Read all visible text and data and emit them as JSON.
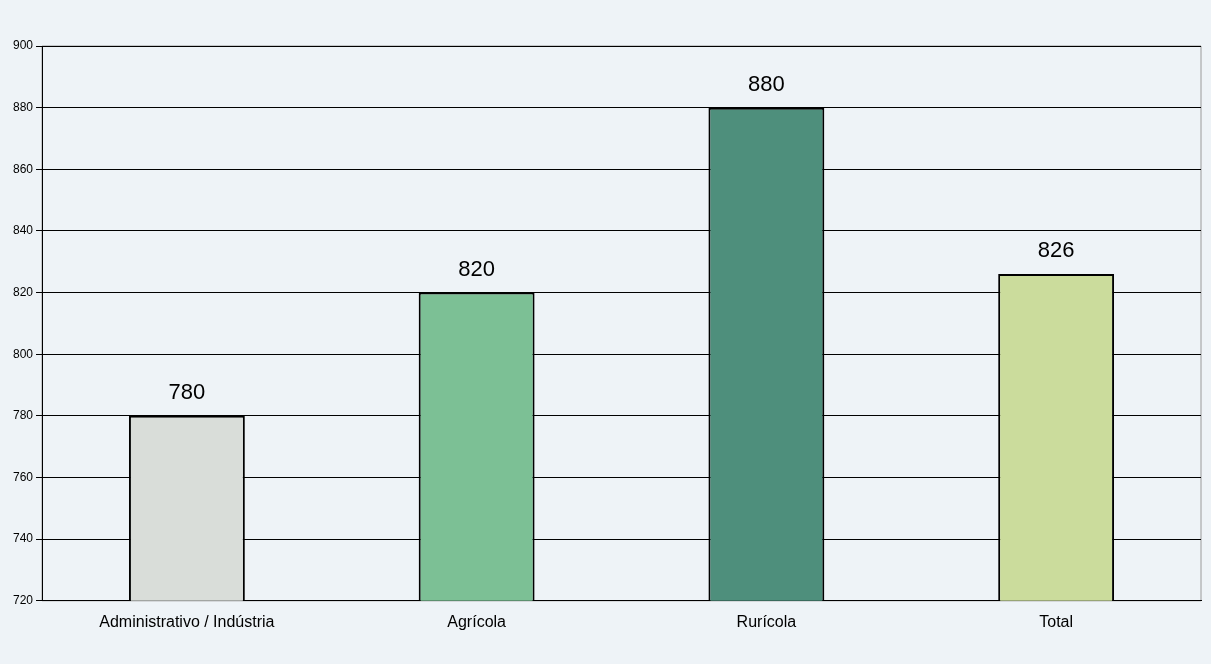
{
  "chart_data": {
    "type": "bar",
    "categories": [
      "Administrativo / Indústria",
      "Agrícola",
      "Rurícola",
      "Total"
    ],
    "values": [
      780,
      820,
      880,
      826
    ],
    "colors": [
      "#d9ddd9",
      "#7cc095",
      "#4e8f7c",
      "#cbdc9c"
    ],
    "ylim": [
      720,
      900
    ],
    "yticks": [
      720,
      740,
      760,
      780,
      800,
      820,
      840,
      860,
      880,
      900
    ],
    "grid": "y",
    "data_labels": true,
    "legend": false
  }
}
